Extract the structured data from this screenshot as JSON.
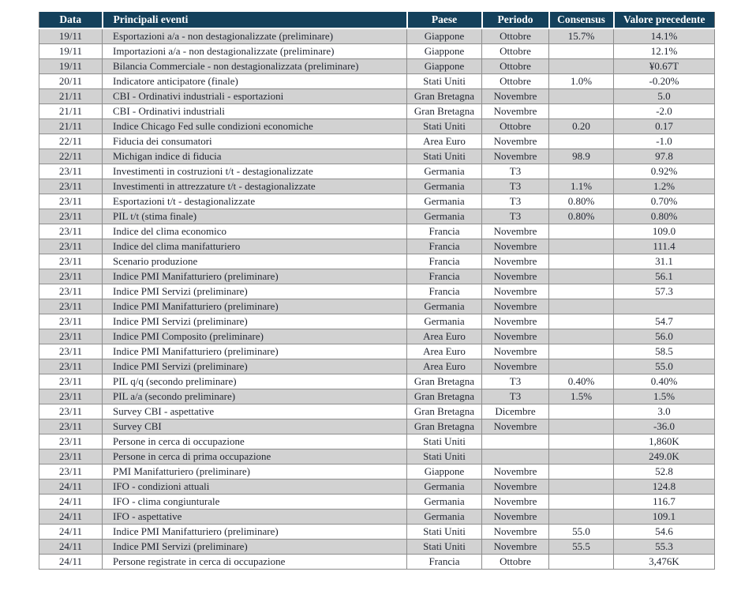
{
  "colors": {
    "header_bg": "#14415c",
    "header_text": "#ffffff",
    "row_alt": "#d2d2d2",
    "row_main": "#ffffff",
    "grid": "#8c8c8c",
    "text": "#1f2430"
  },
  "table": {
    "columns": [
      {
        "label": "Data"
      },
      {
        "label": "Principali eventi"
      },
      {
        "label": "Paese"
      },
      {
        "label": "Periodo"
      },
      {
        "label": "Consensus"
      },
      {
        "label": "Valore precedente"
      }
    ],
    "rows": [
      [
        "19/11",
        "Esportazioni a/a - non destagionalizzate (preliminare)",
        "Giappone",
        "Ottobre",
        "15.7%",
        "14.1%"
      ],
      [
        "19/11",
        "Importazioni a/a - non destagionalizzate (preliminare)",
        "Giappone",
        "Ottobre",
        "",
        "12.1%"
      ],
      [
        "19/11",
        "Bilancia Commerciale -  non destagionalizzata (preliminare)",
        "Giappone",
        "Ottobre",
        "",
        "¥0.67T"
      ],
      [
        "20/11",
        "Indicatore anticipatore (finale)",
        "Stati Uniti",
        "Ottobre",
        "1.0%",
        "-0.20%"
      ],
      [
        "21/11",
        "CBI - Ordinativi industriali - esportazioni",
        "Gran Bretagna",
        "Novembre",
        "",
        "5.0"
      ],
      [
        "21/11",
        "CBI - Ordinativi industriali",
        "Gran Bretagna",
        "Novembre",
        "",
        "-2.0"
      ],
      [
        "21/11",
        "Indice Chicago Fed sulle condizioni economiche",
        "Stati Uniti",
        "Ottobre",
        "0.20",
        "0.17"
      ],
      [
        "22/11",
        "Fiducia dei consumatori",
        "Area Euro",
        "Novembre",
        "",
        "-1.0"
      ],
      [
        "22/11",
        "Michigan indice di fiducia",
        "Stati Uniti",
        "Novembre",
        "98.9",
        "97.8"
      ],
      [
        "23/11",
        "Investimenti in costruzioni t/t - destagionalizzate",
        "Germania",
        "T3",
        "",
        "0.92%"
      ],
      [
        "23/11",
        "Investimenti in attrezzature t/t - destagionalizzate",
        "Germania",
        "T3",
        "1.1%",
        "1.2%"
      ],
      [
        "23/11",
        "Esportazioni t/t - destagionalizzate",
        "Germania",
        "T3",
        "0.80%",
        "0.70%"
      ],
      [
        "23/11",
        "PIL t/t  (stima finale)",
        "Germania",
        "T3",
        "0.80%",
        "0.80%"
      ],
      [
        "23/11",
        "Indice del clima economico",
        "Francia",
        "Novembre",
        "",
        "109.0"
      ],
      [
        "23/11",
        "Indice del clima manifatturiero",
        "Francia",
        "Novembre",
        "",
        "111.4"
      ],
      [
        "23/11",
        "Scenario produzione",
        "Francia",
        "Novembre",
        "",
        "31.1"
      ],
      [
        "23/11",
        "Indice PMI Manifatturiero (preliminare)",
        "Francia",
        "Novembre",
        "",
        "56.1"
      ],
      [
        "23/11",
        "Indice PMI Servizi (preliminare)",
        "Francia",
        "Novembre",
        "",
        "57.3"
      ],
      [
        "23/11",
        "Indice PMI Manifatturiero (preliminare)",
        "Germania",
        "Novembre",
        "",
        ""
      ],
      [
        "23/11",
        "Indice PMI Servizi (preliminare)",
        "Germania",
        "Novembre",
        "",
        "54.7"
      ],
      [
        "23/11",
        "Indice PMI Composito (preliminare)",
        "Area Euro",
        "Novembre",
        "",
        "56.0"
      ],
      [
        "23/11",
        "Indice PMI Manifatturiero (preliminare)",
        "Area Euro",
        "Novembre",
        "",
        "58.5"
      ],
      [
        "23/11",
        "Indice PMI Servizi (preliminare)",
        "Area Euro",
        "Novembre",
        "",
        "55.0"
      ],
      [
        "23/11",
        "PIL q/q (secondo preliminare)",
        "Gran Bretagna",
        "T3",
        "0.40%",
        "0.40%"
      ],
      [
        "23/11",
        "PIL a/a (secondo preliminare)",
        "Gran Bretagna",
        "T3",
        "1.5%",
        "1.5%"
      ],
      [
        "23/11",
        "Survey CBI - aspettative",
        "Gran Bretagna",
        "Dicembre",
        "",
        "3.0"
      ],
      [
        "23/11",
        "Survey CBI",
        "Gran Bretagna",
        "Novembre",
        "",
        "-36.0"
      ],
      [
        "23/11",
        "Persone in cerca di occupazione",
        "Stati Uniti",
        "",
        "",
        "1,860K"
      ],
      [
        "23/11",
        "Persone in cerca di prima occupazione",
        "Stati Uniti",
        "",
        "",
        "249.0K"
      ],
      [
        "23/11",
        "PMI Manifatturiero (preliminare)",
        "Giappone",
        "Novembre",
        "",
        "52.8"
      ],
      [
        "24/11",
        "IFO - condizioni attuali",
        "Germania",
        "Novembre",
        "",
        "124.8"
      ],
      [
        "24/11",
        "IFO - clima congiunturale",
        "Germania",
        "Novembre",
        "",
        "116.7"
      ],
      [
        "24/11",
        "IFO - aspettative",
        "Germania",
        "Novembre",
        "",
        "109.1"
      ],
      [
        "24/11",
        "Indice PMI Manifatturiero (preliminare)",
        "Stati Uniti",
        "Novembre",
        "55.0",
        "54.6"
      ],
      [
        "24/11",
        "Indice PMI Servizi (preliminare)",
        "Stati Uniti",
        "Novembre",
        "55.5",
        "55.3"
      ],
      [
        "24/11",
        "Persone registrate in cerca di occupazione",
        "Francia",
        "Ottobre",
        "",
        "3,476K"
      ]
    ]
  }
}
